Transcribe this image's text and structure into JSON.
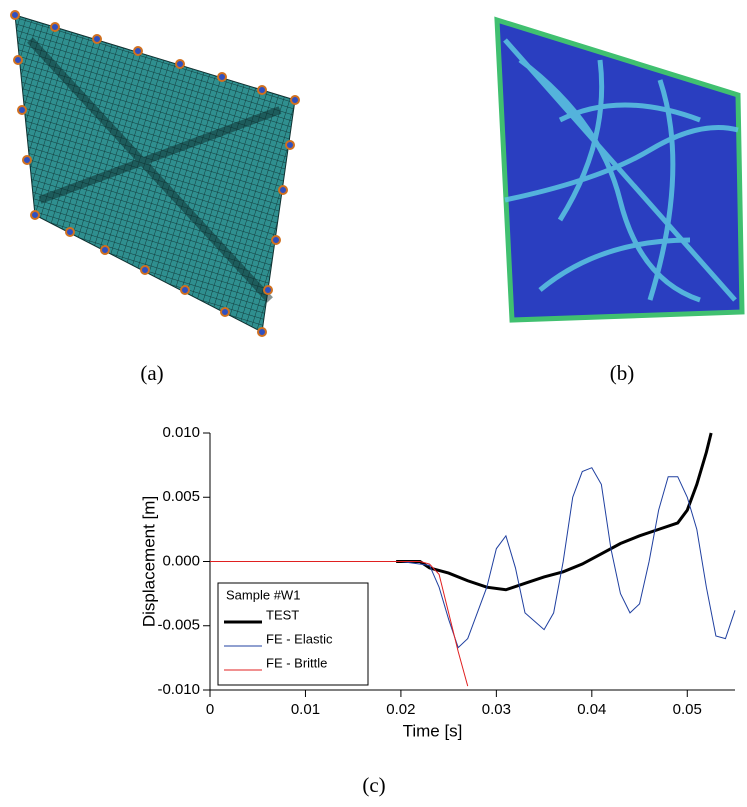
{
  "captions": {
    "a": "(a)",
    "b": "(b)",
    "c": "(c)"
  },
  "chart_data": {
    "type": "line",
    "xlabel": "Time  [s]",
    "ylabel": "Displacement  [m]",
    "xlim": [
      0,
      0.055
    ],
    "xticks": [
      0,
      0.01,
      0.02,
      0.03,
      0.04,
      0.05
    ],
    "ylim": [
      -0.01,
      0.01
    ],
    "yticks": [
      {
        "value": -0.01,
        "label": "-0.010"
      },
      {
        "value": -0.005,
        "label": "-0.005"
      },
      {
        "value": 0,
        "label": "0.000"
      },
      {
        "value": 0.005,
        "label": "0.005"
      },
      {
        "value": 0.01,
        "label": "0.010"
      }
    ],
    "legend_title": "Sample #W1",
    "legend": "lower left",
    "series": [
      {
        "name": "TEST",
        "color": "#000000",
        "width": 3,
        "x": [
          0.0195,
          0.022,
          0.023,
          0.025,
          0.027,
          0.029,
          0.031,
          0.033,
          0.035,
          0.037,
          0.039,
          0.041,
          0.043,
          0.045,
          0.047,
          0.049,
          0.05,
          0.051,
          0.052,
          0.0525
        ],
        "values": [
          0,
          0,
          -0.0005,
          -0.0009,
          -0.0015,
          -0.002,
          -0.0022,
          -0.0017,
          -0.0012,
          -0.0008,
          -0.0002,
          0.0006,
          0.0014,
          0.002,
          0.0025,
          0.003,
          0.004,
          0.006,
          0.0085,
          0.01
        ]
      },
      {
        "name": "FE - Elastic",
        "color": "#2040a0",
        "width": 1,
        "x": [
          0,
          0.02,
          0.023,
          0.024,
          0.025,
          0.026,
          0.027,
          0.029,
          0.03,
          0.031,
          0.032,
          0.033,
          0.035,
          0.036,
          0.037,
          0.038,
          0.039,
          0.04,
          0.041,
          0.042,
          0.043,
          0.044,
          0.045,
          0.046,
          0.047,
          0.048,
          0.049,
          0.05,
          0.051,
          0.052,
          0.053,
          0.054,
          0.055
        ],
        "values": [
          0,
          0,
          -0.0003,
          -0.002,
          -0.0045,
          -0.0067,
          -0.006,
          -0.002,
          0.001,
          0.002,
          -0.0005,
          -0.004,
          -0.0053,
          -0.004,
          0,
          0.005,
          0.007,
          0.0073,
          0.006,
          0.001,
          -0.0025,
          -0.004,
          -0.0033,
          0,
          0.004,
          0.0066,
          0.0066,
          0.005,
          0.0025,
          -0.002,
          -0.0058,
          -0.006,
          -0.0038
        ]
      },
      {
        "name": "FE - Brittle",
        "color": "#e02020",
        "width": 1,
        "x": [
          0,
          0.022,
          0.023,
          0.024,
          0.025,
          0.026,
          0.027
        ],
        "values": [
          0,
          0,
          -0.0002,
          -0.001,
          -0.004,
          -0.007,
          -0.0097
        ]
      }
    ]
  }
}
